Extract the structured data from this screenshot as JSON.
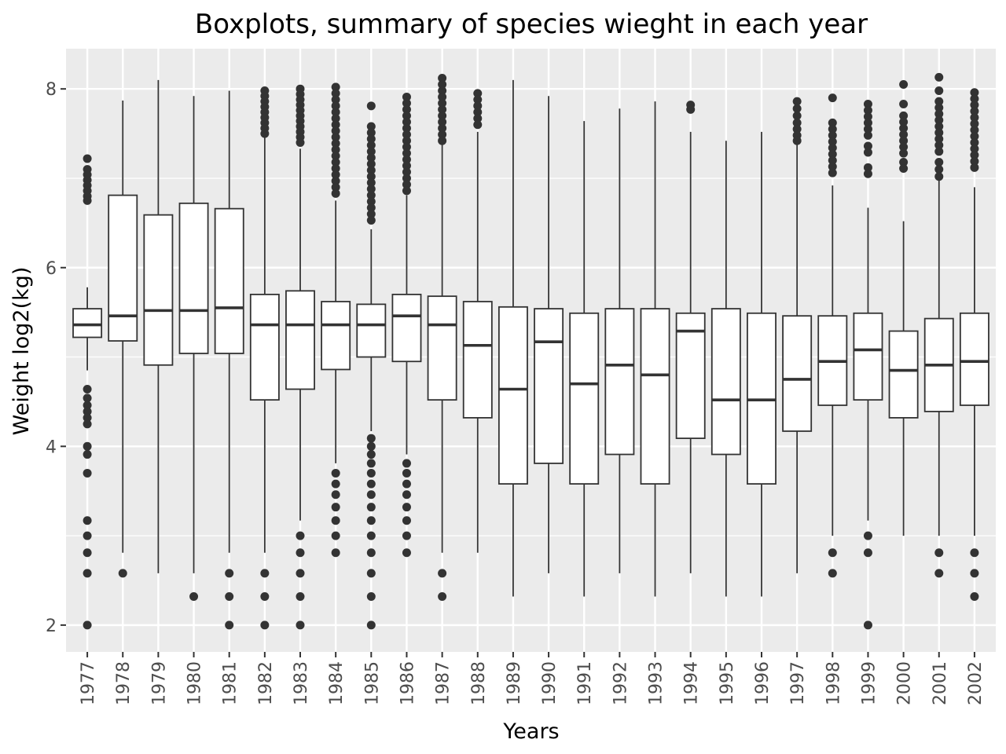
{
  "chart_data": {
    "type": "boxplot",
    "title": "Boxplots, summary of species wieght in each year",
    "xlabel": "Years",
    "ylabel": "Weight log2(kg)",
    "ylim": [
      1.7,
      8.45
    ],
    "yticks": [
      2,
      4,
      6,
      8
    ],
    "grid": true,
    "legend": "none",
    "colors": {
      "panel": "#ebebeb",
      "grid": "#ffffff",
      "box_fill": "#ffffff",
      "box_line": "#333333",
      "outlier": "#333333",
      "tick_text": "#4d4d4d"
    },
    "categories": [
      "1977",
      "1978",
      "1979",
      "1980",
      "1981",
      "1982",
      "1983",
      "1984",
      "1985",
      "1986",
      "1987",
      "1988",
      "1989",
      "1990",
      "1991",
      "1992",
      "1993",
      "1994",
      "1995",
      "1996",
      "1997",
      "1998",
      "1999",
      "2000",
      "2001",
      "2002"
    ],
    "boxes": [
      {
        "year": "1977",
        "lower": 4.85,
        "q1": 5.22,
        "median": 5.36,
        "q3": 5.54,
        "upper": 5.78,
        "outliers": [
          7.22,
          7.1,
          7.04,
          6.98,
          6.92,
          6.86,
          6.8,
          6.75,
          4.64,
          4.54,
          4.46,
          4.39,
          4.32,
          4.25,
          4.0,
          3.91,
          3.7,
          3.17,
          3.0,
          2.81,
          2.58,
          2.0
        ]
      },
      {
        "year": "1978",
        "lower": 2.81,
        "q1": 5.18,
        "median": 5.46,
        "q3": 6.81,
        "upper": 7.87,
        "outliers": [
          2.58
        ]
      },
      {
        "year": "1979",
        "lower": 2.58,
        "q1": 4.91,
        "median": 5.52,
        "q3": 6.59,
        "upper": 8.1,
        "outliers": []
      },
      {
        "year": "1980",
        "lower": 2.58,
        "q1": 5.04,
        "median": 5.52,
        "q3": 6.72,
        "upper": 7.92,
        "outliers": [
          2.32
        ]
      },
      {
        "year": "1981",
        "lower": 2.81,
        "q1": 5.04,
        "median": 5.55,
        "q3": 6.66,
        "upper": 7.98,
        "outliers": [
          2.58,
          2.32,
          2.0
        ]
      },
      {
        "year": "1982",
        "lower": 2.81,
        "q1": 4.52,
        "median": 5.36,
        "q3": 5.7,
        "upper": 7.46,
        "outliers": [
          7.98,
          7.92,
          7.86,
          7.8,
          7.74,
          7.68,
          7.62,
          7.56,
          7.5,
          2.58,
          2.32,
          2.0
        ]
      },
      {
        "year": "1983",
        "lower": 3.17,
        "q1": 4.64,
        "median": 5.36,
        "q3": 5.74,
        "upper": 7.33,
        "outliers": [
          8.0,
          7.94,
          7.88,
          7.82,
          7.76,
          7.7,
          7.64,
          7.58,
          7.52,
          7.46,
          7.4,
          3.0,
          2.81,
          2.58,
          2.32,
          2.0
        ]
      },
      {
        "year": "1984",
        "lower": 3.81,
        "q1": 4.86,
        "median": 5.36,
        "q3": 5.62,
        "upper": 6.75,
        "outliers": [
          8.02,
          7.95,
          7.88,
          7.81,
          7.74,
          7.67,
          7.6,
          7.53,
          7.46,
          7.39,
          7.32,
          7.25,
          7.18,
          7.11,
          7.04,
          6.97,
          6.9,
          6.83,
          3.7,
          3.58,
          3.46,
          3.32,
          3.17,
          3.0,
          2.81
        ]
      },
      {
        "year": "1985",
        "lower": 4.17,
        "q1": 5.0,
        "median": 5.36,
        "q3": 5.59,
        "upper": 6.43,
        "outliers": [
          7.81,
          7.58,
          7.51,
          7.44,
          7.37,
          7.3,
          7.23,
          7.16,
          7.09,
          7.02,
          6.95,
          6.88,
          6.81,
          6.74,
          6.67,
          6.6,
          6.53,
          4.09,
          4.0,
          3.91,
          3.81,
          3.7,
          3.58,
          3.46,
          3.32,
          3.17,
          3.0,
          2.81,
          2.58,
          2.32,
          2.0
        ]
      },
      {
        "year": "1986",
        "lower": 3.91,
        "q1": 4.95,
        "median": 5.46,
        "q3": 5.7,
        "upper": 6.81,
        "outliers": [
          7.91,
          7.84,
          7.77,
          7.7,
          7.63,
          7.56,
          7.49,
          7.42,
          7.35,
          7.28,
          7.21,
          7.14,
          7.07,
          7.0,
          6.93,
          6.86,
          3.81,
          3.7,
          3.58,
          3.46,
          3.32,
          3.17,
          3.0,
          2.81
        ]
      },
      {
        "year": "1987",
        "lower": 2.81,
        "q1": 4.52,
        "median": 5.36,
        "q3": 5.68,
        "upper": 7.38,
        "outliers": [
          8.12,
          8.05,
          7.98,
          7.91,
          7.84,
          7.77,
          7.7,
          7.63,
          7.56,
          7.49,
          7.42,
          2.58,
          2.32
        ]
      },
      {
        "year": "1988",
        "lower": 2.81,
        "q1": 4.32,
        "median": 5.13,
        "q3": 5.62,
        "upper": 7.52,
        "outliers": [
          7.95,
          7.88,
          7.81,
          7.74,
          7.67,
          7.6
        ]
      },
      {
        "year": "1989",
        "lower": 2.32,
        "q1": 3.58,
        "median": 4.64,
        "q3": 5.56,
        "upper": 8.1,
        "outliers": []
      },
      {
        "year": "1990",
        "lower": 2.58,
        "q1": 3.81,
        "median": 5.17,
        "q3": 5.54,
        "upper": 7.92,
        "outliers": []
      },
      {
        "year": "1991",
        "lower": 2.32,
        "q1": 3.58,
        "median": 4.7,
        "q3": 5.49,
        "upper": 7.64,
        "outliers": []
      },
      {
        "year": "1992",
        "lower": 2.58,
        "q1": 3.91,
        "median": 4.91,
        "q3": 5.54,
        "upper": 7.78,
        "outliers": []
      },
      {
        "year": "1993",
        "lower": 2.32,
        "q1": 3.58,
        "median": 4.8,
        "q3": 5.54,
        "upper": 7.86,
        "outliers": []
      },
      {
        "year": "1994",
        "lower": 2.58,
        "q1": 4.09,
        "median": 5.29,
        "q3": 5.49,
        "upper": 7.52,
        "outliers": [
          7.82,
          7.77
        ]
      },
      {
        "year": "1995",
        "lower": 2.32,
        "q1": 3.91,
        "median": 4.52,
        "q3": 5.54,
        "upper": 7.42,
        "outliers": []
      },
      {
        "year": "1996",
        "lower": 2.32,
        "q1": 3.58,
        "median": 4.52,
        "q3": 5.49,
        "upper": 7.52,
        "outliers": []
      },
      {
        "year": "1997",
        "lower": 2.58,
        "q1": 4.17,
        "median": 4.75,
        "q3": 5.46,
        "upper": 7.38,
        "outliers": [
          7.86,
          7.78,
          7.7,
          7.62,
          7.55,
          7.48,
          7.42
        ]
      },
      {
        "year": "1998",
        "lower": 3.0,
        "q1": 4.46,
        "median": 4.95,
        "q3": 5.46,
        "upper": 6.92,
        "outliers": [
          7.9,
          7.62,
          7.55,
          7.48,
          7.41,
          7.34,
          7.27,
          7.2,
          7.13,
          7.06,
          2.81,
          2.58
        ]
      },
      {
        "year": "1999",
        "lower": 3.17,
        "q1": 4.52,
        "median": 5.08,
        "q3": 5.49,
        "upper": 6.67,
        "outliers": [
          7.83,
          7.76,
          7.69,
          7.62,
          7.55,
          7.48,
          7.36,
          7.29,
          7.12,
          7.05,
          3.0,
          2.81,
          2.0
        ]
      },
      {
        "year": "2000",
        "lower": 3.0,
        "q1": 4.32,
        "median": 4.85,
        "q3": 5.29,
        "upper": 6.52,
        "outliers": [
          8.05,
          7.83,
          7.7,
          7.63,
          7.56,
          7.49,
          7.42,
          7.35,
          7.28,
          7.18,
          7.11
        ]
      },
      {
        "year": "2001",
        "lower": 3.0,
        "q1": 4.39,
        "median": 4.91,
        "q3": 5.43,
        "upper": 6.98,
        "outliers": [
          8.13,
          7.98,
          7.86,
          7.79,
          7.72,
          7.65,
          7.58,
          7.51,
          7.44,
          7.37,
          7.3,
          7.18,
          7.1,
          7.02,
          2.81,
          2.58
        ]
      },
      {
        "year": "2002",
        "lower": 3.0,
        "q1": 4.46,
        "median": 4.95,
        "q3": 5.49,
        "upper": 6.9,
        "outliers": [
          7.96,
          7.89,
          7.82,
          7.75,
          7.68,
          7.61,
          7.54,
          7.47,
          7.4,
          7.33,
          7.26,
          7.19,
          7.12,
          2.81,
          2.58,
          2.32
        ]
      }
    ]
  }
}
